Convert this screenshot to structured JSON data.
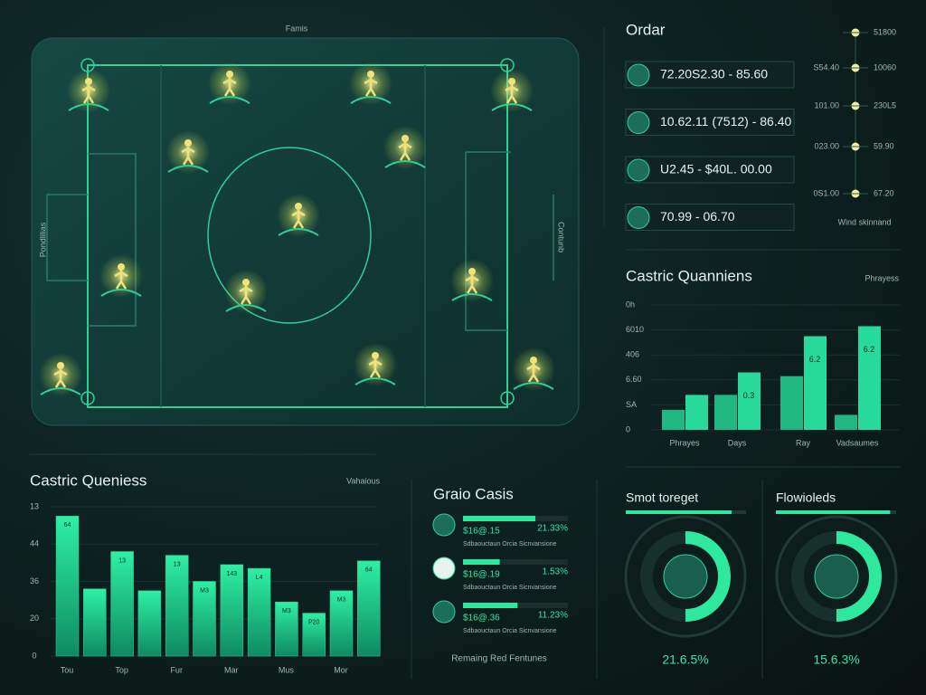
{
  "pitch": {
    "title": "Famis",
    "left_label": "Pondlilias",
    "right_label": "Contunb"
  },
  "orders": {
    "title": "Ordar",
    "items": [
      "72.20S2.30 - 85.60",
      "10.62.11 (7512) - 86.40",
      "U2.45 - $40L. 00.00",
      "70.99 - 06.70"
    ]
  },
  "timeline": {
    "left": [
      "S54.40",
      "101.00",
      "023.00",
      "0S1.00"
    ],
    "right": [
      "51800",
      "10060",
      "230L5",
      "59.90",
      "67.20"
    ],
    "footer": "Wind skinnand"
  },
  "chart_top": {
    "type": "bar",
    "title": "Castric Quanniens",
    "legend": "Phrayess",
    "axis_labels": [
      "0h",
      "6010",
      "406",
      "6.60",
      "SA",
      "0"
    ],
    "categories": [
      "Phrayes",
      "Days",
      "Ray",
      "Vadsaumes"
    ],
    "ylim": [
      0,
      100
    ],
    "series": [
      {
        "color": "#1fb883",
        "values": [
          16,
          28,
          43,
          12
        ]
      },
      {
        "color": "#27d99a",
        "values": [
          28,
          46,
          75,
          83
        ]
      }
    ],
    "bar_tags": [
      null,
      "0.3",
      "6.2",
      "6.2"
    ]
  },
  "chart_bottom": {
    "type": "bar",
    "title": "Castric Queniess",
    "legend": "Vahaious",
    "axis_labels": [
      "13",
      "44",
      "36",
      "20",
      "0"
    ],
    "categories": [
      "Tou",
      null,
      "Top",
      null,
      "Fur",
      null,
      "Mar",
      null,
      "Mus",
      null,
      "Mor",
      null
    ],
    "ylim": [
      0,
      80
    ],
    "color": "#22d28f",
    "values": [
      75,
      36,
      56,
      35,
      54,
      40,
      49,
      47,
      29,
      23,
      35,
      51
    ],
    "bar_tags": [
      "64",
      null,
      "13",
      null,
      "13",
      "M3",
      "143",
      "L4",
      "M3",
      "P20",
      "M3",
      "64"
    ]
  },
  "grain": {
    "title": "Graio Casis",
    "footer": "Remaing Red Fentunes",
    "items": [
      {
        "amount": "$16@.15",
        "pct": "21.33%",
        "note": "Sdbaouctaun Orcia Sicnvansione",
        "progress": 69
      },
      {
        "amount": "$16@.19",
        "pct": "1.53%",
        "note": "Sdbaouctaun Orcia Sicnvansione",
        "progress": 35
      },
      {
        "amount": "$16@.36",
        "pct": "11.23%",
        "note": "Sdbaouctaun Orcia Sicnvansione",
        "progress": 52
      }
    ]
  },
  "gauges": [
    {
      "title": "Smot toreget",
      "bar": 88,
      "arc": 50,
      "value": "21.6.5%"
    },
    {
      "title": "Flowioleds",
      "bar": 95,
      "arc": 50,
      "value": "15.6.3%"
    }
  ]
}
